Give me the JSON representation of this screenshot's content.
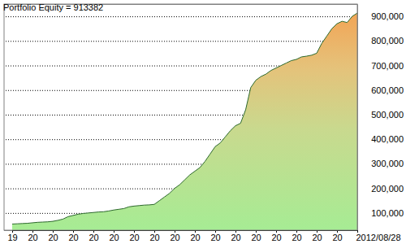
{
  "chart_data": {
    "type": "area",
    "title": "Portfolio Equity = 913382",
    "categories": [
      "19",
      null,
      null,
      null,
      "20",
      null,
      null,
      null,
      "20",
      null,
      null,
      null,
      "20",
      null,
      null,
      null,
      "20",
      null,
      null,
      null,
      "20",
      null,
      null,
      null,
      "20",
      null,
      null,
      null,
      "20",
      null,
      null,
      null,
      "20",
      null,
      null,
      null,
      "20",
      null,
      null,
      null,
      "20",
      null,
      null,
      null,
      "20",
      null,
      null,
      null,
      "20",
      null,
      null,
      null,
      "20",
      null,
      null,
      null,
      "20",
      null,
      null,
      null,
      "20",
      null,
      null,
      null,
      "20",
      null,
      null,
      null,
      "2012/08/28"
    ],
    "values": [
      55000,
      56000,
      57000,
      58000,
      60000,
      62000,
      63000,
      64000,
      66000,
      70000,
      75000,
      85000,
      90000,
      95000,
      98000,
      100000,
      102000,
      104000,
      105000,
      108000,
      112000,
      115000,
      118000,
      125000,
      128000,
      130000,
      132000,
      133000,
      135000,
      150000,
      165000,
      180000,
      200000,
      215000,
      235000,
      255000,
      270000,
      285000,
      310000,
      340000,
      370000,
      385000,
      410000,
      435000,
      455000,
      465000,
      520000,
      610000,
      640000,
      655000,
      665000,
      680000,
      690000,
      700000,
      710000,
      720000,
      725000,
      735000,
      738000,
      742000,
      750000,
      790000,
      820000,
      850000,
      870000,
      880000,
      875000,
      900000,
      913382
    ],
    "color": "#2d6a2d",
    "ylim": [
      30000,
      950000
    ],
    "yticks": [
      {
        "value": 100000,
        "label": "100,000"
      },
      {
        "value": 200000,
        "label": "200,000"
      },
      {
        "value": 300000,
        "label": "300,000"
      },
      {
        "value": 400000,
        "label": "400,000"
      },
      {
        "value": 500000,
        "label": "500,000"
      },
      {
        "value": 600000,
        "label": "600,000"
      },
      {
        "value": 700000,
        "label": "700,000"
      },
      {
        "value": 800000,
        "label": "800,000"
      },
      {
        "value": 900000,
        "label": "900,000"
      }
    ],
    "grid": true
  }
}
